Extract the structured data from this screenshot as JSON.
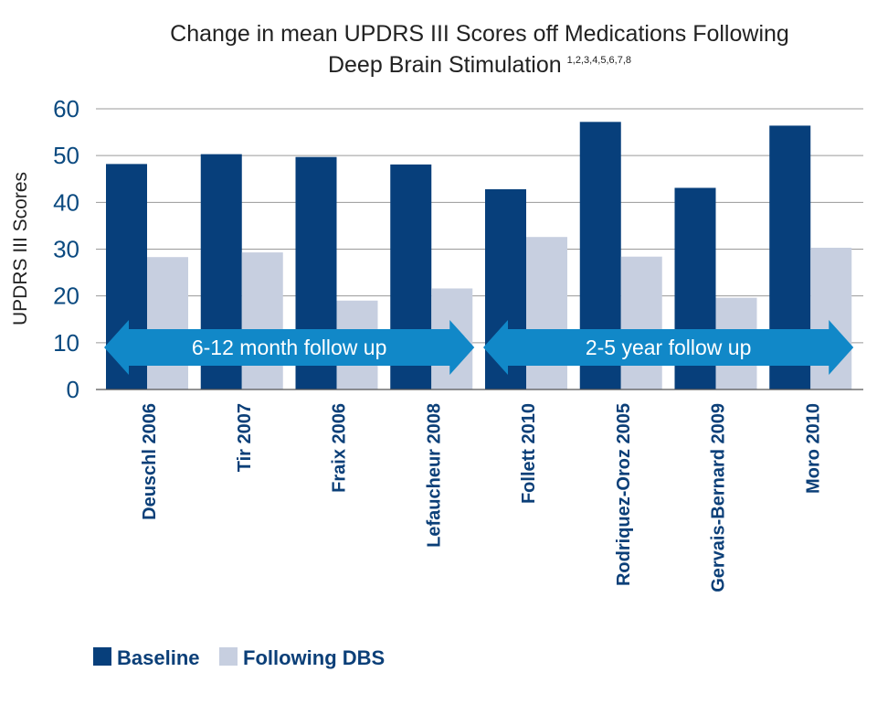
{
  "chart_data": {
    "type": "bar",
    "title_line1": "Change in mean UPDRS III Scores off Medications Following",
    "title_line2": "Deep Brain Stimulation",
    "title_superscript": "1,2,3,4,5,6,7,8",
    "ylabel": "UPDRS III Scores",
    "xlabel": "",
    "ylim": [
      0,
      60
    ],
    "yticks": [
      "0",
      "10",
      "20",
      "30",
      "40",
      "50",
      "60"
    ],
    "grid": true,
    "categories": [
      "Deuschl 2006",
      "Tir 2007",
      "Fraix 2006",
      "Lefaucheur 2008",
      "Follett 2010",
      "Rodriquez-Oroz 2005",
      "Gervais-Bernard 2009",
      "Moro 2010"
    ],
    "series": [
      {
        "name": "Baseline",
        "color": "#073f7b",
        "values": [
          48.2,
          50.3,
          49.7,
          48.1,
          42.8,
          57.2,
          43.1,
          56.4
        ]
      },
      {
        "name": "Following DBS",
        "color": "#c7cfe0",
        "values": [
          28.3,
          29.3,
          19.0,
          21.6,
          32.6,
          28.4,
          19.6,
          30.3
        ]
      }
    ],
    "legend_position": "bottom-left",
    "annotations": [
      {
        "text": "6-12 month follow up",
        "from_category": 0,
        "to_category": 3,
        "y": 9
      },
      {
        "text": "2-5 year follow up",
        "from_category": 4,
        "to_category": 7,
        "y": 9
      }
    ],
    "arrow_color": "#1188c8"
  }
}
